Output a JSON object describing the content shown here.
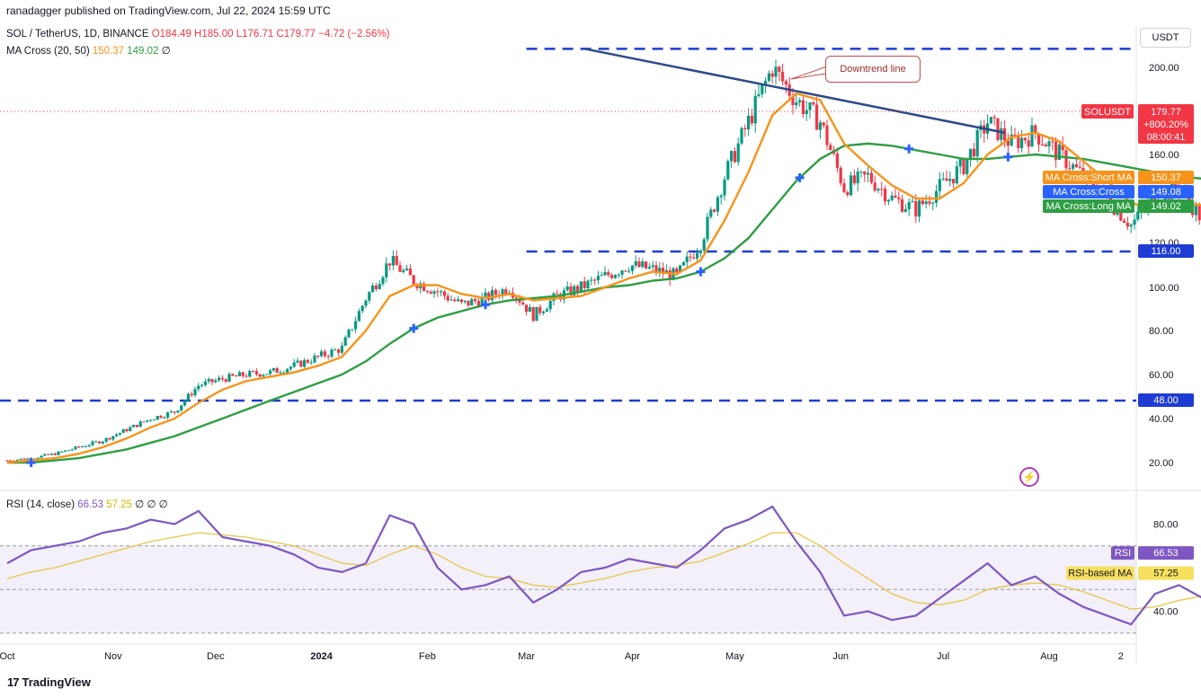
{
  "header": {
    "published": "ranadagger published on TradingView.com, Jul 22, 2024 15:59 UTC",
    "symbol": "SOL / TetherUS, 1D, BINANCE",
    "ohlc": "O184.49 H185.00 L176.71 C179.77 −4.72 (−2.56%)",
    "ma_label": "MA Cross (20, 50)",
    "ma_short": "150.37",
    "ma_long": "149.02",
    "ma_empty": "∅"
  },
  "rsi_header": {
    "label": "RSI (14, close)",
    "rsi": "66.53",
    "rsi_ma": "57.25",
    "empties": "∅ ∅ ∅"
  },
  "currency_button": "USDT",
  "footer_logo": "TradingView",
  "annotation": "Downtrend line",
  "icons": [
    "flash-icon",
    "tradingview-logo-icon"
  ],
  "colors": {
    "candle_up": "#089981",
    "candle_down": "#f23645",
    "ma_short": "#f7931a",
    "ma_long": "#2e9e43",
    "trendline": "#2c4a8a",
    "support_lines": "#1e3cd4",
    "rsi": "#7e57c2",
    "rsi_ma": "#e8c547",
    "cross_marker": "#2962ff"
  },
  "chart_data": {
    "type": "candlestick",
    "price_axis": {
      "min": 20,
      "max": 200,
      "ticks": [
        20,
        40,
        60,
        80,
        100,
        120,
        160,
        200
      ]
    },
    "time_axis": [
      "Oct",
      "Nov",
      "Dec",
      "2024",
      "Feb",
      "Mar",
      "Apr",
      "May",
      "Jun",
      "Jul",
      "Aug",
      "2"
    ],
    "horizontal_levels": [
      210,
      116,
      48
    ],
    "downtrend_line": {
      "from": [
        "2024-03-18",
        210
      ],
      "to": [
        "2024-07-19",
        170
      ]
    },
    "price_labels": [
      {
        "text": "SOLUSDT",
        "value": "179.77",
        "extra": [
          "+800.20%",
          "08:00:41"
        ],
        "color": "#f23645"
      },
      {
        "text": "MA Cross:Short MA",
        "value": "150.37",
        "color": "#f7931a"
      },
      {
        "text": "MA Cross:Cross",
        "value": "149.08",
        "color": "#2962ff"
      },
      {
        "text": "MA Cross:Long MA",
        "value": "149.02",
        "color": "#2e9e43"
      },
      {
        "text": "",
        "value": "116.00",
        "color": "#1e3cd4"
      },
      {
        "text": "",
        "value": "48.00",
        "color": "#1e3cd4"
      }
    ],
    "close_series": {
      "start": "2023-10-01",
      "step_days": 7,
      "values": [
        21,
        22,
        24,
        27,
        30,
        35,
        40,
        43,
        55,
        58,
        60,
        61,
        64,
        68,
        72,
        95,
        112,
        103,
        98,
        92,
        95,
        100,
        87,
        96,
        100,
        105,
        110,
        108,
        105,
        120,
        150,
        175,
        200,
        185,
        175,
        145,
        150,
        140,
        135,
        145,
        155,
        175,
        165,
        170,
        160,
        150,
        140,
        128,
        140,
        145,
        130,
        140,
        155,
        180
      ]
    },
    "ma_short_series": [
      20,
      21,
      22,
      24,
      27,
      31,
      36,
      40,
      47,
      53,
      57,
      59,
      61,
      64,
      68,
      80,
      96,
      101,
      101,
      97,
      95,
      97,
      94,
      95,
      96,
      100,
      104,
      107,
      106,
      112,
      130,
      152,
      178,
      188,
      185,
      165,
      155,
      146,
      140,
      140,
      147,
      160,
      168,
      170,
      166,
      157,
      148,
      138,
      135,
      138,
      137,
      138,
      143,
      150
    ],
    "ma_long_series": [
      20,
      20,
      21,
      22,
      24,
      26,
      29,
      32,
      36,
      40,
      44,
      48,
      52,
      56,
      60,
      66,
      74,
      81,
      86,
      89,
      92,
      94,
      95,
      96,
      98,
      100,
      101,
      103,
      104,
      107,
      113,
      122,
      135,
      148,
      158,
      164,
      165,
      164,
      162,
      160,
      158,
      158,
      159,
      160,
      159,
      158,
      156,
      154,
      152,
      150,
      149,
      148,
      148,
      149
    ],
    "rsi": {
      "ticks": [
        40,
        80
      ],
      "band": [
        30,
        70
      ],
      "mid": 50,
      "label": "RSI",
      "label_value": "66.53",
      "ma_label": "RSI-based MA",
      "ma_value": "57.25",
      "values": [
        62,
        68,
        70,
        72,
        76,
        78,
        82,
        80,
        86,
        74,
        72,
        70,
        66,
        60,
        58,
        62,
        84,
        80,
        60,
        50,
        52,
        56,
        44,
        50,
        58,
        60,
        64,
        62,
        60,
        68,
        78,
        82,
        88,
        72,
        58,
        38,
        40,
        36,
        38,
        46,
        54,
        62,
        52,
        56,
        48,
        42,
        38,
        34,
        48,
        52,
        46,
        52,
        60,
        66
      ],
      "ma_values": [
        55,
        58,
        60,
        63,
        66,
        69,
        72,
        74,
        76,
        75,
        74,
        72,
        70,
        66,
        62,
        61,
        66,
        70,
        66,
        60,
        56,
        55,
        52,
        51,
        53,
        55,
        58,
        60,
        61,
        63,
        67,
        71,
        76,
        76,
        70,
        62,
        55,
        48,
        44,
        43,
        45,
        50,
        52,
        53,
        52,
        49,
        45,
        41,
        42,
        45,
        47,
        49,
        53,
        57
      ]
    }
  }
}
